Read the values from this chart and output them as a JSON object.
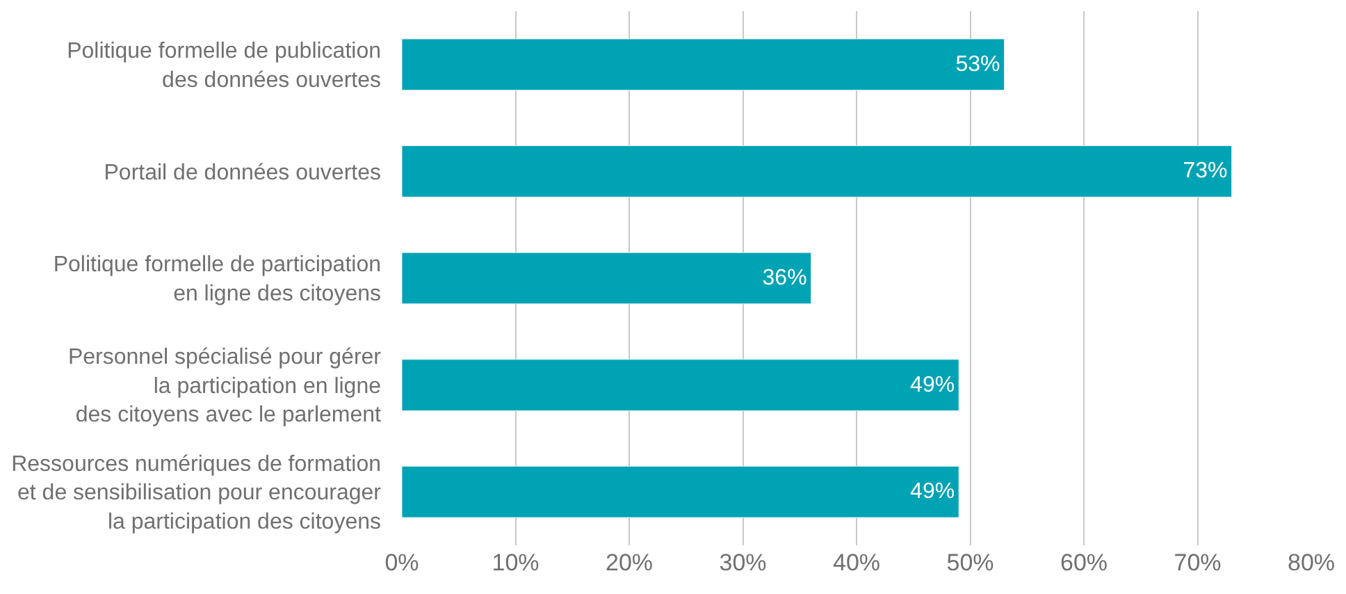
{
  "chart_data": {
    "type": "bar",
    "orientation": "horizontal",
    "categories": [
      "Politique formelle de publication\ndes données ouvertes",
      "Portail de données ouvertes",
      "Politique formelle de participation\nen ligne des citoyens",
      "Personnel spécialisé pour gérer\nla participation en ligne\ndes citoyens avec le parlement",
      "Ressources numériques de formation\net de sensibilisation pour encourager\nla participation des citoyens"
    ],
    "values": [
      53,
      73,
      36,
      49,
      49
    ],
    "value_labels": [
      "53%",
      "73%",
      "36%",
      "49%",
      "49%"
    ],
    "color": "#00a3b4",
    "xlim": [
      0,
      80
    ],
    "xticks": [
      {
        "value": 0,
        "label": "0%"
      },
      {
        "value": 10,
        "label": "10%"
      },
      {
        "value": 20,
        "label": "20%"
      },
      {
        "value": 30,
        "label": "30%"
      },
      {
        "value": 40,
        "label": "40%"
      },
      {
        "value": 50,
        "label": "50%"
      },
      {
        "value": 60,
        "label": "60%"
      },
      {
        "value": 70,
        "label": "70%"
      },
      {
        "value": 80,
        "label": "80%"
      }
    ],
    "grid": "x",
    "legend": false
  }
}
